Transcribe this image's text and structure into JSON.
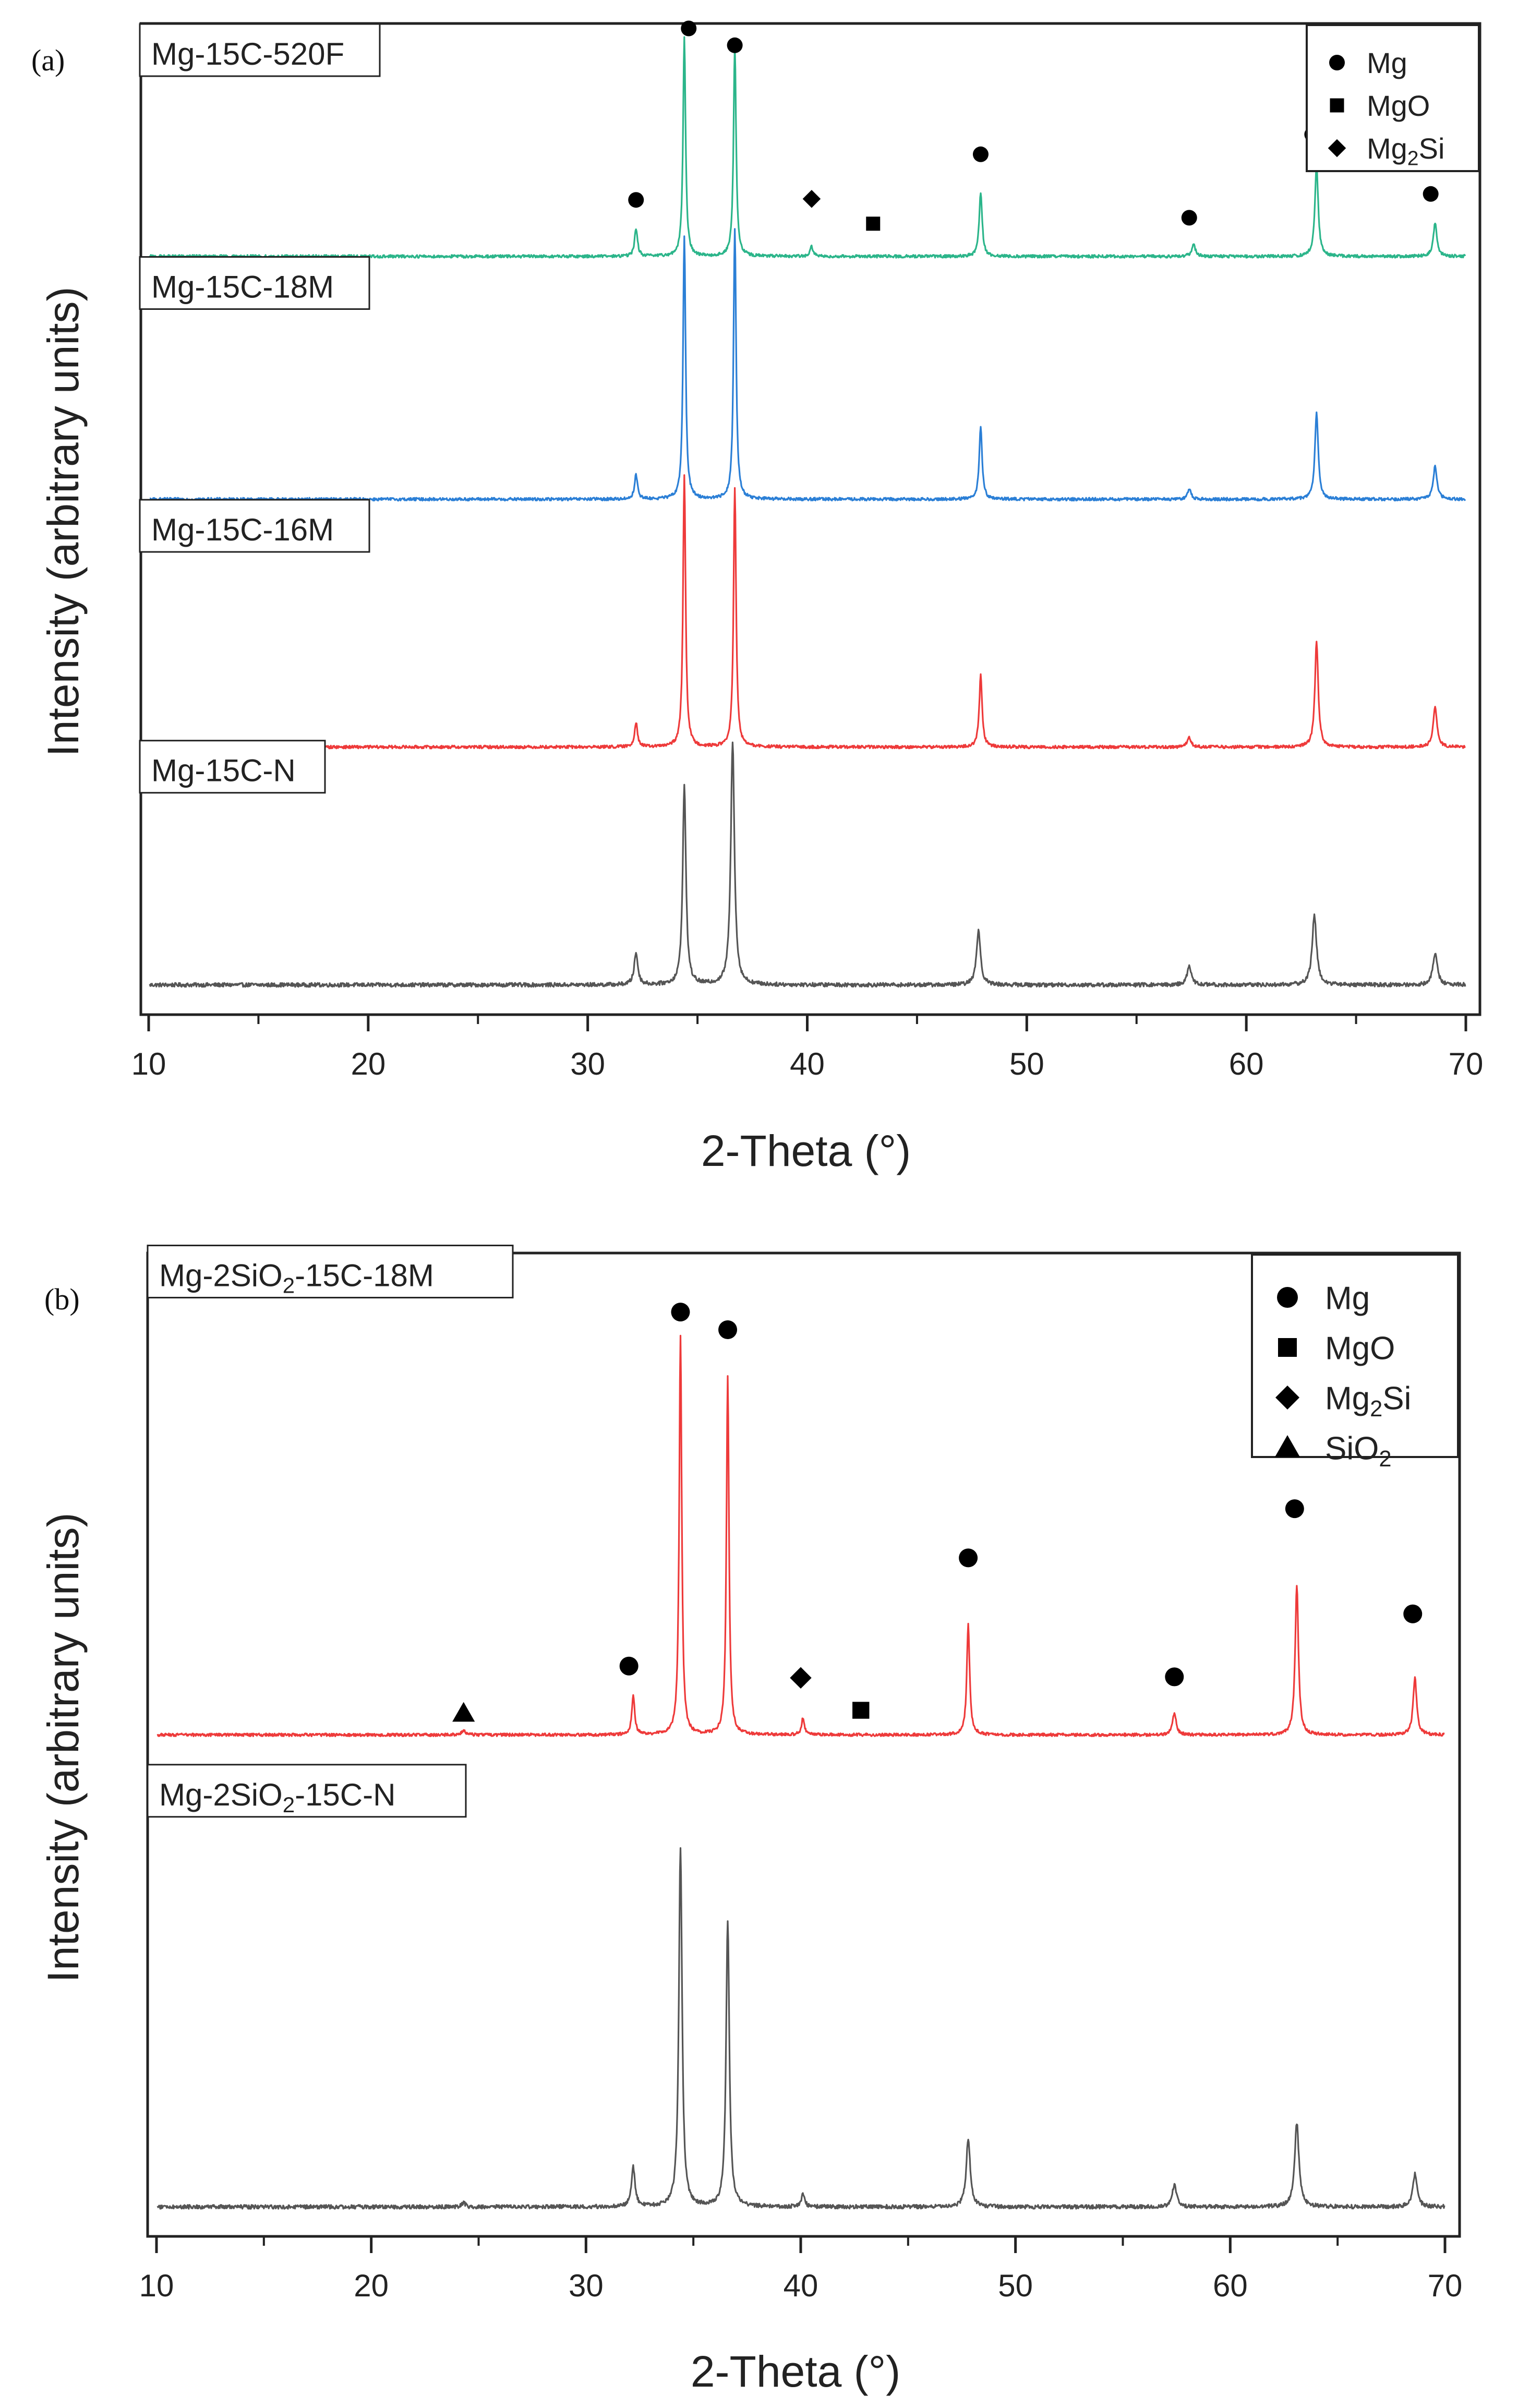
{
  "chart_data": [
    {
      "type": "line",
      "panel_label": "(a)",
      "xlabel": "2-Theta (°)",
      "ylabel": "Intensity (arbitrary units)",
      "xlim": [
        10,
        70
      ],
      "x_ticks": [
        "10",
        "20",
        "30",
        "40",
        "50",
        "60",
        "70"
      ],
      "legend": {
        "placement": "top-right",
        "entries": [
          {
            "marker": "circle",
            "label": "Mg"
          },
          {
            "marker": "square",
            "label": "MgO"
          },
          {
            "marker": "diamond",
            "label": "Mg",
            "sub": "2",
            "label_after": "Si"
          }
        ]
      },
      "series": [
        {
          "name": "Mg-15C-N",
          "color": "#555555",
          "baseline": 0.03,
          "noise": 0.004,
          "peaks": [
            {
              "x": 32.2,
              "h": 0.032,
              "w": 0.1
            },
            {
              "x": 34.4,
              "h": 0.2,
              "w": 0.09
            },
            {
              "x": 36.6,
              "h": 0.245,
              "w": 0.1
            },
            {
              "x": 47.8,
              "h": 0.055,
              "w": 0.11
            },
            {
              "x": 57.4,
              "h": 0.018,
              "w": 0.12
            },
            {
              "x": 63.1,
              "h": 0.07,
              "w": 0.12
            },
            {
              "x": 68.6,
              "h": 0.032,
              "w": 0.12
            }
          ]
        },
        {
          "name": "Mg-15C-16M",
          "color": "#ee3a3a",
          "baseline": 0.27,
          "noise": 0.003,
          "peaks": [
            {
              "x": 32.2,
              "h": 0.025,
              "w": 0.08
            },
            {
              "x": 34.4,
              "h": 0.275,
              "w": 0.07
            },
            {
              "x": 36.7,
              "h": 0.262,
              "w": 0.07
            },
            {
              "x": 47.9,
              "h": 0.072,
              "w": 0.08
            },
            {
              "x": 57.4,
              "h": 0.01,
              "w": 0.1
            },
            {
              "x": 63.2,
              "h": 0.107,
              "w": 0.09
            },
            {
              "x": 68.6,
              "h": 0.042,
              "w": 0.1
            }
          ]
        },
        {
          "name": "Mg-15C-18M",
          "color": "#2b7fd6",
          "baseline": 0.52,
          "noise": 0.003,
          "peaks": [
            {
              "x": 32.2,
              "h": 0.025,
              "w": 0.08
            },
            {
              "x": 34.4,
              "h": 0.265,
              "w": 0.07
            },
            {
              "x": 36.7,
              "h": 0.273,
              "w": 0.07
            },
            {
              "x": 47.9,
              "h": 0.073,
              "w": 0.08
            },
            {
              "x": 57.4,
              "h": 0.01,
              "w": 0.1
            },
            {
              "x": 63.2,
              "h": 0.088,
              "w": 0.09
            },
            {
              "x": 68.6,
              "h": 0.033,
              "w": 0.1
            }
          ]
        },
        {
          "name": "Mg-15C-520F",
          "color": "#2bb58a",
          "baseline": 0.765,
          "noise": 0.003,
          "peaks": [
            {
              "x": 32.2,
              "h": 0.028,
              "w": 0.08
            },
            {
              "x": 34.4,
              "h": 0.22,
              "w": 0.07
            },
            {
              "x": 36.7,
              "h": 0.212,
              "w": 0.07
            },
            {
              "x": 40.2,
              "h": 0.01,
              "w": 0.08
            },
            {
              "x": 47.9,
              "h": 0.065,
              "w": 0.08
            },
            {
              "x": 57.6,
              "h": 0.012,
              "w": 0.1
            },
            {
              "x": 63.2,
              "h": 0.092,
              "w": 0.09
            },
            {
              "x": 68.6,
              "h": 0.033,
              "w": 0.1
            }
          ]
        }
      ],
      "phase_markers": [
        {
          "phase": "Mg",
          "marker": "circle",
          "x": 32.2,
          "y": 0.822
        },
        {
          "phase": "Mg",
          "marker": "circle",
          "x": 34.6,
          "y": 0.995
        },
        {
          "phase": "Mg",
          "marker": "circle",
          "x": 36.7,
          "y": 0.978
        },
        {
          "phase": "Mg2Si",
          "marker": "diamond",
          "x": 40.2,
          "y": 0.823
        },
        {
          "phase": "MgO",
          "marker": "square",
          "x": 43.0,
          "y": 0.798
        },
        {
          "phase": "Mg",
          "marker": "circle",
          "x": 47.9,
          "y": 0.868
        },
        {
          "phase": "Mg",
          "marker": "circle",
          "x": 57.4,
          "y": 0.804
        },
        {
          "phase": "Mg",
          "marker": "circle",
          "x": 63.0,
          "y": 0.888
        },
        {
          "phase": "Mg",
          "marker": "circle",
          "x": 68.4,
          "y": 0.828
        }
      ],
      "series_labels": [
        {
          "text": "Mg-15C-520F",
          "y": 0.97
        },
        {
          "text": "Mg-15C-18M",
          "y": 0.735
        },
        {
          "text": "Mg-15C-16M",
          "y": 0.49
        },
        {
          "text": "Mg-15C-N",
          "y": 0.247
        }
      ]
    },
    {
      "type": "line",
      "panel_label": "(b)",
      "xlabel": "2-Theta (°)",
      "ylabel": "Intensity (arbitrary units)",
      "xlim": [
        10,
        70
      ],
      "x_ticks": [
        "10",
        "20",
        "30",
        "40",
        "50",
        "60",
        "70"
      ],
      "legend": {
        "placement": "top-right",
        "entries": [
          {
            "marker": "circle",
            "label": "Mg"
          },
          {
            "marker": "square",
            "label": "MgO"
          },
          {
            "marker": "diamond",
            "label": "Mg",
            "sub": "2",
            "label_after": "Si"
          },
          {
            "marker": "triangle",
            "label": "SiO",
            "sub": "2",
            "label_after": ""
          }
        ]
      },
      "series": [
        {
          "name": "Mg-2SiO2-15C-N",
          "color": "#555555",
          "baseline": 0.03,
          "noise": 0.004,
          "peaks": [
            {
              "x": 24.3,
              "h": 0.004,
              "w": 0.1
            },
            {
              "x": 32.2,
              "h": 0.04,
              "w": 0.1
            },
            {
              "x": 34.4,
              "h": 0.365,
              "w": 0.09
            },
            {
              "x": 36.6,
              "h": 0.29,
              "w": 0.09
            },
            {
              "x": 40.1,
              "h": 0.012,
              "w": 0.1
            },
            {
              "x": 47.8,
              "h": 0.07,
              "w": 0.11
            },
            {
              "x": 57.4,
              "h": 0.022,
              "w": 0.12
            },
            {
              "x": 63.1,
              "h": 0.085,
              "w": 0.12
            },
            {
              "x": 68.6,
              "h": 0.033,
              "w": 0.12
            }
          ]
        },
        {
          "name": "Mg-2SiO2-15C-18M",
          "color": "#ee3a3a",
          "baseline": 0.51,
          "noise": 0.003,
          "peaks": [
            {
              "x": 24.3,
              "h": 0.005,
              "w": 0.1
            },
            {
              "x": 32.2,
              "h": 0.04,
              "w": 0.08
            },
            {
              "x": 34.4,
              "h": 0.405,
              "w": 0.07
            },
            {
              "x": 36.6,
              "h": 0.365,
              "w": 0.07
            },
            {
              "x": 40.1,
              "h": 0.017,
              "w": 0.08
            },
            {
              "x": 47.8,
              "h": 0.112,
              "w": 0.08
            },
            {
              "x": 57.4,
              "h": 0.022,
              "w": 0.1
            },
            {
              "x": 63.1,
              "h": 0.153,
              "w": 0.09
            },
            {
              "x": 68.6,
              "h": 0.058,
              "w": 0.1
            }
          ]
        }
      ],
      "phase_markers": [
        {
          "phase": "SiO2",
          "marker": "triangle",
          "x": 24.3,
          "y": 0.532
        },
        {
          "phase": "Mg",
          "marker": "circle",
          "x": 32.0,
          "y": 0.58
        },
        {
          "phase": "Mg",
          "marker": "circle",
          "x": 34.4,
          "y": 0.94
        },
        {
          "phase": "Mg",
          "marker": "circle",
          "x": 36.6,
          "y": 0.922
        },
        {
          "phase": "Mg2Si",
          "marker": "diamond",
          "x": 40.0,
          "y": 0.568
        },
        {
          "phase": "MgO",
          "marker": "square",
          "x": 42.8,
          "y": 0.535
        },
        {
          "phase": "Mg",
          "marker": "circle",
          "x": 47.8,
          "y": 0.69
        },
        {
          "phase": "Mg",
          "marker": "circle",
          "x": 57.4,
          "y": 0.569
        },
        {
          "phase": "Mg",
          "marker": "circle",
          "x": 63.0,
          "y": 0.74
        },
        {
          "phase": "Mg",
          "marker": "circle",
          "x": 68.5,
          "y": 0.633
        }
      ],
      "series_labels": [
        {
          "text": "Mg-2SiO",
          "sub": "2",
          "after": "-15C-18M",
          "y": 0.978
        },
        {
          "text": "Mg-2SiO",
          "sub": "2",
          "after": "-15C-N",
          "y": 0.45
        }
      ]
    }
  ]
}
